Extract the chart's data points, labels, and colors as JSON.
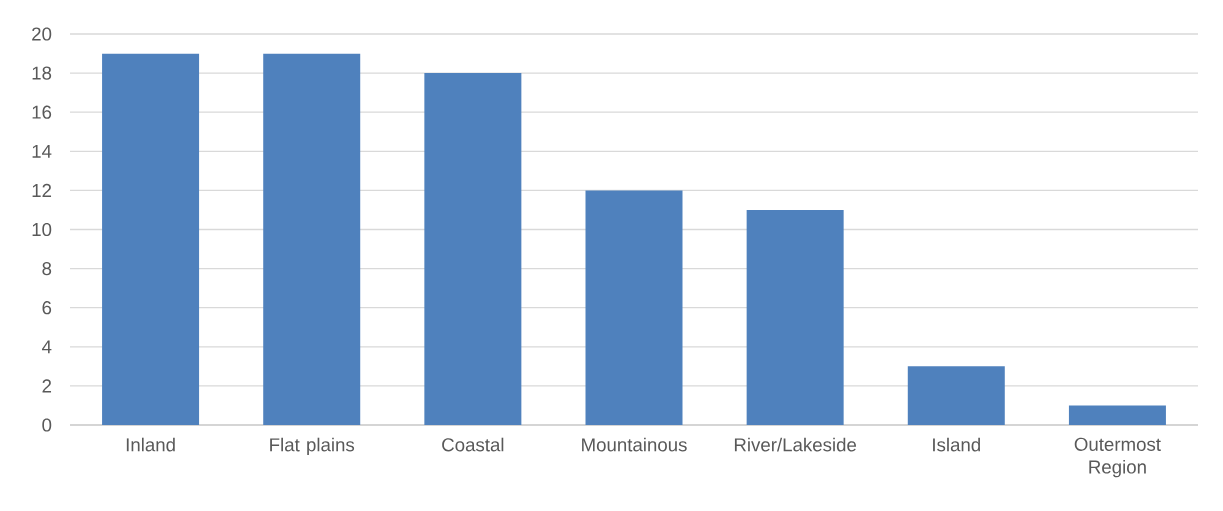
{
  "chart_data": {
    "type": "bar",
    "categories": [
      "Inland",
      "Flat plains",
      "Coastal",
      "Mountainous",
      "River/Lakeside",
      "Island",
      "Outermost Region"
    ],
    "values": [
      19,
      19,
      18,
      12,
      11,
      3,
      1
    ],
    "color": "#4f81bd",
    "ylim": [
      0,
      20
    ],
    "yticks": [
      0,
      2,
      4,
      6,
      8,
      10,
      12,
      14,
      16,
      18,
      20
    ],
    "grid": "y"
  }
}
